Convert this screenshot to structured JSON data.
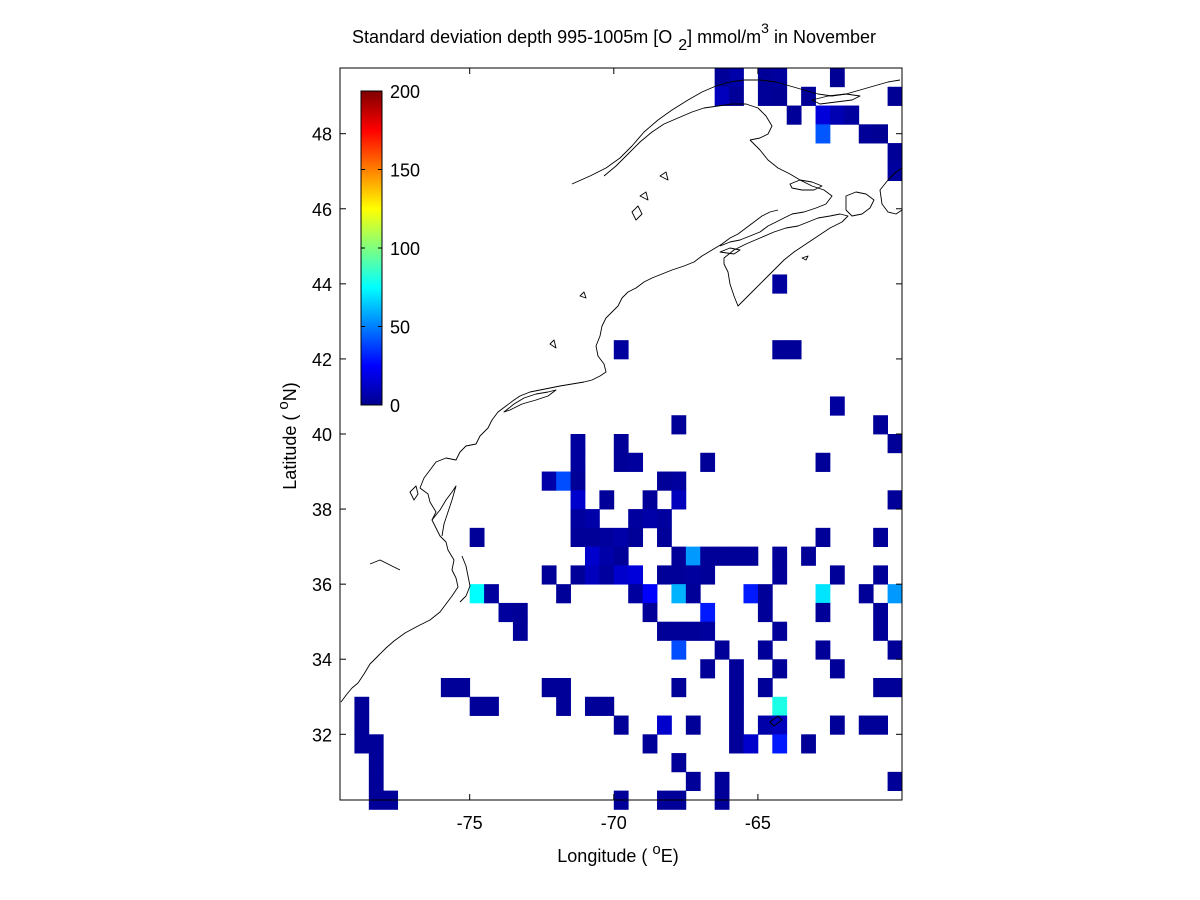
{
  "chart_data": {
    "type": "heatmap",
    "title": {
      "main": "Standard deviation depth 995-1005m [O",
      "subscript": "2",
      "middle": "] mmol/m",
      "superscript": "3",
      "end": " in November"
    },
    "xlabel": {
      "text": "Longitude ( ",
      "degree": "o",
      "unit": "E)"
    },
    "ylabel": {
      "text": "Latitude ( ",
      "degree": "o",
      "unit": "N)"
    },
    "xlim": [
      -79.5,
      -60
    ],
    "ylim": [
      30.25,
      49.75
    ],
    "x_ticks": [
      -75,
      -70,
      -65
    ],
    "y_ticks": [
      32,
      34,
      36,
      38,
      40,
      42,
      44,
      46,
      48
    ],
    "colorbar": {
      "colormap": "jet",
      "range": [
        0,
        200
      ],
      "ticks": [
        0,
        50,
        100,
        150,
        200
      ],
      "placement": "inside upper-left"
    },
    "grid_spacing_deg": 0.5,
    "coastline_color": "#000000",
    "cells": [
      [
        -66.25,
        49.5,
        5
      ],
      [
        -65.75,
        49.5,
        8
      ],
      [
        -64.75,
        49.5,
        5
      ],
      [
        -64.25,
        49.5,
        6
      ],
      [
        -62.25,
        49.5,
        4
      ],
      [
        -66.25,
        49.0,
        12
      ],
      [
        -65.75,
        49.0,
        5
      ],
      [
        -64.75,
        49.0,
        5
      ],
      [
        -64.25,
        49.0,
        4
      ],
      [
        -63.25,
        49.0,
        5
      ],
      [
        -60.25,
        49.0,
        4
      ],
      [
        -63.75,
        48.5,
        5
      ],
      [
        -62.75,
        48.5,
        18
      ],
      [
        -62.25,
        48.5,
        10
      ],
      [
        -61.75,
        48.5,
        6
      ],
      [
        -62.75,
        48.0,
        42
      ],
      [
        -61.25,
        48.0,
        5
      ],
      [
        -60.75,
        48.0,
        4
      ],
      [
        -60.25,
        47.5,
        5
      ],
      [
        -60.25,
        47.0,
        6
      ],
      [
        -64.25,
        44.0,
        6
      ],
      [
        -69.75,
        42.25,
        6
      ],
      [
        -64.25,
        42.25,
        5
      ],
      [
        -63.75,
        42.25,
        5
      ],
      [
        -62.25,
        40.75,
        6
      ],
      [
        -67.75,
        40.25,
        5
      ],
      [
        -60.75,
        40.25,
        5
      ],
      [
        -71.25,
        39.75,
        6
      ],
      [
        -69.75,
        39.75,
        5
      ],
      [
        -60.25,
        39.75,
        5
      ],
      [
        -71.25,
        39.25,
        6
      ],
      [
        -69.75,
        39.25,
        5
      ],
      [
        -69.25,
        39.25,
        6
      ],
      [
        -66.75,
        39.25,
        5
      ],
      [
        -62.75,
        39.25,
        5
      ],
      [
        -72.25,
        38.75,
        8
      ],
      [
        -71.75,
        38.75,
        40
      ],
      [
        -71.25,
        38.75,
        5
      ],
      [
        -68.25,
        38.75,
        5
      ],
      [
        -67.75,
        38.75,
        6
      ],
      [
        -71.25,
        38.25,
        15
      ],
      [
        -70.25,
        38.25,
        5
      ],
      [
        -68.75,
        38.25,
        5
      ],
      [
        -67.75,
        38.25,
        12
      ],
      [
        -60.25,
        38.25,
        5
      ],
      [
        -71.25,
        37.75,
        6
      ],
      [
        -70.75,
        37.75,
        8
      ],
      [
        -69.25,
        37.75,
        6
      ],
      [
        -68.75,
        37.75,
        8
      ],
      [
        -68.25,
        37.75,
        6
      ],
      [
        -74.75,
        37.25,
        5
      ],
      [
        -71.25,
        37.25,
        5
      ],
      [
        -70.75,
        37.25,
        5
      ],
      [
        -70.25,
        37.25,
        6
      ],
      [
        -69.75,
        37.25,
        8
      ],
      [
        -69.25,
        37.25,
        5
      ],
      [
        -68.25,
        37.25,
        5
      ],
      [
        -62.75,
        37.25,
        5
      ],
      [
        -60.75,
        37.25,
        5
      ],
      [
        -70.75,
        36.75,
        15
      ],
      [
        -70.25,
        36.75,
        8
      ],
      [
        -69.75,
        36.75,
        5
      ],
      [
        -67.75,
        36.75,
        5
      ],
      [
        -67.25,
        36.75,
        55
      ],
      [
        -66.75,
        36.75,
        5
      ],
      [
        -66.25,
        36.75,
        5
      ],
      [
        -65.75,
        36.75,
        5
      ],
      [
        -65.25,
        36.75,
        5
      ],
      [
        -64.25,
        36.75,
        5
      ],
      [
        -63.25,
        36.75,
        5
      ],
      [
        -72.25,
        36.25,
        5
      ],
      [
        -71.25,
        36.25,
        5
      ],
      [
        -70.75,
        36.25,
        12
      ],
      [
        -70.25,
        36.25,
        6
      ],
      [
        -69.75,
        36.25,
        15
      ],
      [
        -69.25,
        36.25,
        18
      ],
      [
        -68.25,
        36.25,
        5
      ],
      [
        -67.75,
        36.25,
        5
      ],
      [
        -67.25,
        36.25,
        6
      ],
      [
        -66.75,
        36.25,
        5
      ],
      [
        -64.25,
        36.25,
        5
      ],
      [
        -62.25,
        36.25,
        5
      ],
      [
        -60.75,
        36.25,
        5
      ],
      [
        -74.75,
        35.75,
        75
      ],
      [
        -74.25,
        35.75,
        6
      ],
      [
        -71.75,
        35.75,
        5
      ],
      [
        -69.25,
        35.75,
        6
      ],
      [
        -68.75,
        35.75,
        25
      ],
      [
        -67.75,
        35.75,
        60
      ],
      [
        -67.25,
        35.75,
        5
      ],
      [
        -65.25,
        35.75,
        30
      ],
      [
        -64.75,
        35.75,
        5
      ],
      [
        -62.75,
        35.75,
        70
      ],
      [
        -61.25,
        35.75,
        5
      ],
      [
        -60.25,
        35.75,
        55
      ],
      [
        -73.75,
        35.25,
        6
      ],
      [
        -73.25,
        35.25,
        5
      ],
      [
        -68.75,
        35.25,
        5
      ],
      [
        -66.75,
        35.25,
        30
      ],
      [
        -64.75,
        35.25,
        5
      ],
      [
        -62.75,
        35.25,
        5
      ],
      [
        -60.75,
        35.25,
        5
      ],
      [
        -73.25,
        34.75,
        5
      ],
      [
        -68.25,
        34.75,
        5
      ],
      [
        -67.75,
        34.75,
        5
      ],
      [
        -67.25,
        34.75,
        5
      ],
      [
        -66.75,
        34.75,
        6
      ],
      [
        -64.25,
        34.75,
        5
      ],
      [
        -60.75,
        34.75,
        5
      ],
      [
        -67.75,
        34.25,
        40
      ],
      [
        -66.25,
        34.25,
        5
      ],
      [
        -64.75,
        34.25,
        5
      ],
      [
        -62.75,
        34.25,
        5
      ],
      [
        -60.25,
        34.25,
        5
      ],
      [
        -66.75,
        33.75,
        5
      ],
      [
        -65.75,
        33.75,
        5
      ],
      [
        -64.25,
        33.75,
        5
      ],
      [
        -62.25,
        33.75,
        5
      ],
      [
        -75.75,
        33.25,
        5
      ],
      [
        -75.25,
        33.25,
        5
      ],
      [
        -72.25,
        33.25,
        5
      ],
      [
        -71.75,
        33.25,
        5
      ],
      [
        -67.75,
        33.25,
        5
      ],
      [
        -65.75,
        33.25,
        5
      ],
      [
        -64.75,
        33.25,
        5
      ],
      [
        -60.75,
        33.25,
        5
      ],
      [
        -60.25,
        33.25,
        5
      ],
      [
        -78.75,
        32.75,
        5
      ],
      [
        -74.75,
        32.75,
        5
      ],
      [
        -74.25,
        32.75,
        5
      ],
      [
        -71.75,
        32.75,
        5
      ],
      [
        -70.75,
        32.75,
        5
      ],
      [
        -70.25,
        32.75,
        5
      ],
      [
        -65.75,
        32.75,
        5
      ],
      [
        -64.25,
        32.75,
        80
      ],
      [
        -78.75,
        32.25,
        5
      ],
      [
        -69.75,
        32.25,
        5
      ],
      [
        -68.25,
        32.25,
        15
      ],
      [
        -67.25,
        32.25,
        5
      ],
      [
        -65.75,
        32.25,
        5
      ],
      [
        -64.75,
        32.25,
        8
      ],
      [
        -64.25,
        32.25,
        12
      ],
      [
        -62.25,
        32.25,
        5
      ],
      [
        -61.25,
        32.25,
        5
      ],
      [
        -60.75,
        32.25,
        5
      ],
      [
        -78.75,
        31.75,
        5
      ],
      [
        -78.25,
        31.75,
        5
      ],
      [
        -68.75,
        31.75,
        5
      ],
      [
        -65.75,
        31.75,
        5
      ],
      [
        -65.25,
        31.75,
        15
      ],
      [
        -64.25,
        31.75,
        30
      ],
      [
        -63.25,
        31.75,
        5
      ],
      [
        -78.25,
        31.25,
        5
      ],
      [
        -67.75,
        31.25,
        5
      ],
      [
        -78.25,
        30.75,
        5
      ],
      [
        -67.25,
        30.75,
        5
      ],
      [
        -66.25,
        30.75,
        5
      ],
      [
        -60.25,
        30.75,
        5
      ],
      [
        -78.25,
        30.25,
        5
      ],
      [
        -77.75,
        30.25,
        5
      ],
      [
        -69.75,
        30.25,
        5
      ],
      [
        -68.25,
        30.25,
        5
      ],
      [
        -67.75,
        30.25,
        5
      ],
      [
        -66.25,
        30.25,
        5
      ]
    ]
  }
}
